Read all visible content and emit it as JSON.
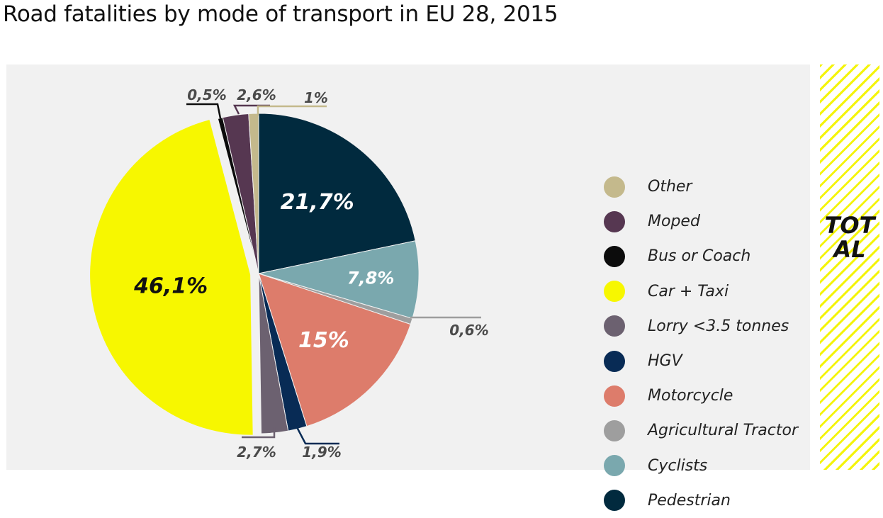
{
  "title": "Road fatalities by mode of transport in EU 28, 2015",
  "side_label": "TOTAL",
  "colors": {
    "panel_bg": "#f1f1f1",
    "stripe": "#f4f40a"
  },
  "chart_data": {
    "type": "pie",
    "title": "Road fatalities by mode of transport in EU 28, 2015",
    "legend_position": "right",
    "slices": [
      {
        "name": "Pedestrian",
        "label": "21,7%",
        "value": 21.7,
        "color": "#012a3e",
        "label_inside": true,
        "label_color": "#ffffff"
      },
      {
        "name": "Cyclists",
        "label": "7,8%",
        "value": 7.8,
        "color": "#7aa8ae",
        "label_inside": true,
        "label_color": "#ffffff"
      },
      {
        "name": "Agricultural Tractor",
        "label": "0,6%",
        "value": 0.6,
        "color": "#9e9e9e",
        "label_inside": false
      },
      {
        "name": "Motorcycle",
        "label": "15%",
        "value": 15.0,
        "color": "#dd7c6b",
        "label_inside": true,
        "label_color": "#ffffff"
      },
      {
        "name": "HGV",
        "label": "1,9%",
        "value": 1.9,
        "color": "#082b55",
        "label_inside": false
      },
      {
        "name": "Lorry <3.5 tonnes",
        "label": "2,7%",
        "value": 2.7,
        "color": "#6c6170",
        "label_inside": false
      },
      {
        "name": "Car + Taxi",
        "label": "46,1%",
        "value": 46.1,
        "color": "#f7f700",
        "label_inside": true,
        "label_color": "#111111",
        "exploded": true
      },
      {
        "name": "Bus or Coach",
        "label": "0,5%",
        "value": 0.5,
        "color": "#0c0c0c",
        "label_inside": false
      },
      {
        "name": "Moped",
        "label": "2,6%",
        "value": 2.6,
        "color": "#563751",
        "label_inside": false
      },
      {
        "name": "Other",
        "label": "1%",
        "value": 1.0,
        "color": "#c4b98c",
        "label_inside": false
      }
    ],
    "legend": [
      {
        "name": "Other",
        "color": "#c4b98c"
      },
      {
        "name": "Moped",
        "color": "#563751"
      },
      {
        "name": "Bus or Coach",
        "color": "#0c0c0c"
      },
      {
        "name": "Car + Taxi",
        "color": "#f7f700"
      },
      {
        "name": "Lorry <3.5 tonnes",
        "color": "#6c6170"
      },
      {
        "name": "HGV",
        "color": "#082b55"
      },
      {
        "name": "Motorcycle",
        "color": "#dd7c6b"
      },
      {
        "name": "Agricultural Tractor",
        "color": "#9e9e9e"
      },
      {
        "name": "Cyclists",
        "color": "#7aa8ae"
      },
      {
        "name": "Pedestrian",
        "color": "#012a3e"
      }
    ]
  }
}
